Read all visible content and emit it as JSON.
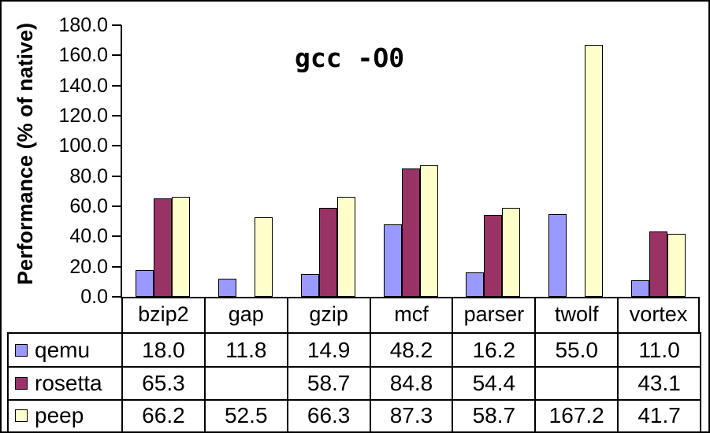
{
  "chart_data": {
    "type": "bar",
    "title": "gcc -O0",
    "ylabel": "Performance (% of native)",
    "xlabel": "",
    "categories": [
      "bzip2",
      "gap",
      "gzip",
      "mcf",
      "parser",
      "twolf",
      "vortex"
    ],
    "series": [
      {
        "name": "qemu",
        "color": "#9999FF",
        "values": [
          18.0,
          11.8,
          14.9,
          48.2,
          16.2,
          55.0,
          11.0
        ]
      },
      {
        "name": "rosetta",
        "color": "#993366",
        "values": [
          65.3,
          null,
          58.7,
          84.8,
          54.4,
          null,
          43.1
        ]
      },
      {
        "name": "peep",
        "color": "#FFFFCC",
        "values": [
          66.2,
          52.5,
          66.3,
          87.3,
          58.7,
          167.2,
          41.7
        ]
      }
    ],
    "ylim": [
      0,
      180
    ],
    "ytick_step": 20,
    "ytick_labels": [
      "180.0",
      "160.0",
      "140.0",
      "120.0",
      "100.0",
      "80.0",
      "60.0",
      "40.0",
      "20.0",
      "0.0"
    ],
    "grid": false,
    "legend_position": "table-left",
    "table_rows": [
      {
        "label": "qemu",
        "swatch_color": "#9999FF",
        "cells": [
          "18.0",
          "11.8",
          "14.9",
          "48.2",
          "16.2",
          "55.0",
          "11.0"
        ]
      },
      {
        "label": "rosetta",
        "swatch_color": "#993366",
        "cells": [
          "65.3",
          "",
          "58.7",
          "84.8",
          "54.4",
          "",
          "43.1"
        ]
      },
      {
        "label": "peep",
        "swatch_color": "#FFFFCC",
        "cells": [
          "66.2",
          "52.5",
          "66.3",
          "87.3",
          "58.7",
          "167.2",
          "41.7"
        ]
      }
    ]
  }
}
